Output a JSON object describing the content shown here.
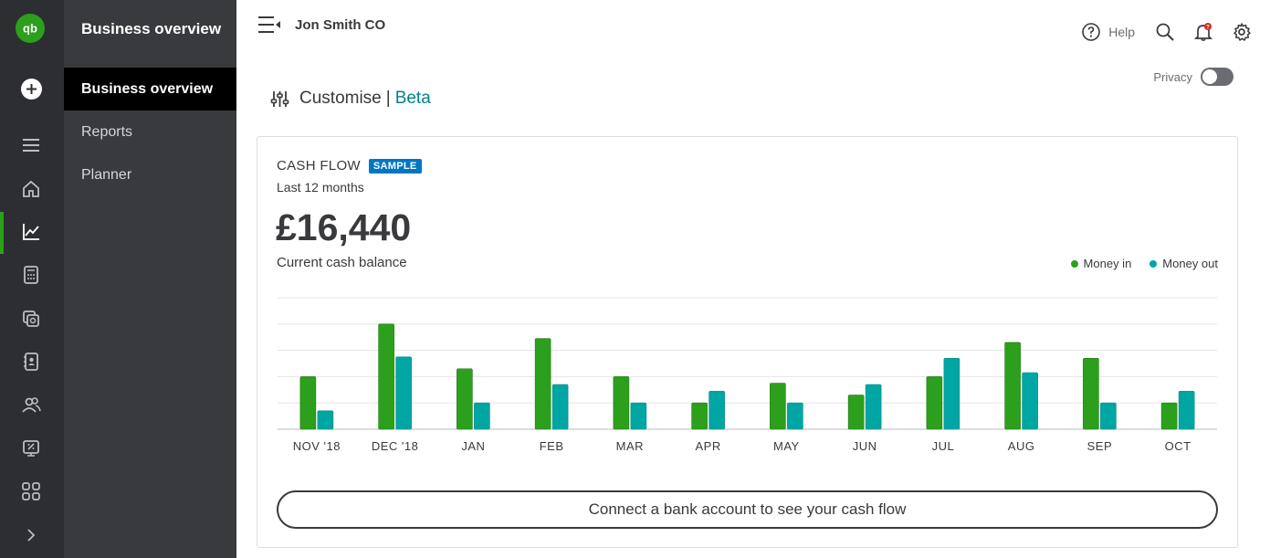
{
  "nav": {
    "title": "Business overview",
    "items": [
      {
        "label": "Business overview",
        "active": true
      },
      {
        "label": "Reports",
        "active": false
      },
      {
        "label": "Planner",
        "active": false
      }
    ]
  },
  "header": {
    "company": "Jon Smith CO",
    "help_label": "Help"
  },
  "privacy": {
    "label": "Privacy",
    "enabled": false
  },
  "customise": {
    "label": "Customise",
    "separator": "|",
    "beta": "Beta"
  },
  "card": {
    "title": "CASH FLOW",
    "badge": "SAMPLE",
    "period": "Last 12 months",
    "balance": "£16,440",
    "balance_label": "Current cash balance",
    "legend": [
      {
        "label": "Money in",
        "color": "#2ca01c"
      },
      {
        "label": "Money out",
        "color": "#00a6a4"
      }
    ],
    "cta": "Connect a bank account to see your cash flow"
  },
  "chart_data": {
    "type": "bar",
    "categories": [
      "NOV '18",
      "DEC '18",
      "JAN",
      "FEB",
      "MAR",
      "APR",
      "MAY",
      "JUN",
      "JUL",
      "AUG",
      "SEP",
      "OCT"
    ],
    "series": [
      {
        "name": "Money in",
        "color": "#2ca01c",
        "values": [
          2.0,
          4.0,
          2.3,
          3.45,
          2.0,
          1.0,
          1.75,
          1.3,
          2.0,
          3.3,
          2.7,
          1.0
        ]
      },
      {
        "name": "Money out",
        "color": "#00a6a4",
        "values": [
          0.7,
          2.75,
          1.0,
          1.7,
          1.0,
          1.45,
          1.0,
          1.7,
          2.7,
          2.15,
          1.0,
          1.45
        ]
      }
    ],
    "ylim": [
      0,
      5
    ],
    "grid": true,
    "legend_position": "top-right"
  },
  "colors": {
    "brand_green": "#2ca01c",
    "teal": "#00a6a4",
    "rail_bg": "#2d2e31",
    "nav_bg": "#393a3d",
    "badge_blue": "#0077c5",
    "beta_teal": "#00838b"
  },
  "icons": {
    "rail": [
      "plus-icon",
      "menu-icon",
      "home-icon",
      "chart-icon",
      "calculator-icon",
      "money-icon",
      "contacts-icon",
      "people-icon",
      "taxes-icon",
      "apps-icon",
      "chevron-right-icon"
    ],
    "top": [
      "help-icon",
      "search-icon",
      "bell-icon",
      "gear-icon"
    ]
  }
}
